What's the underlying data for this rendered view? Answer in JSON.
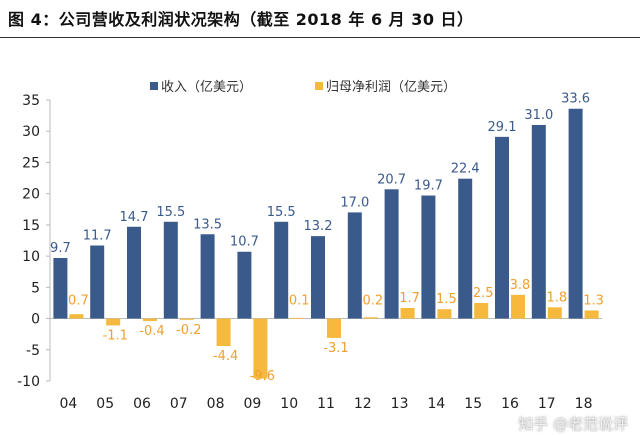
{
  "title": "图 4：公司营收及利润状况架构（截至 2018 年 6 月 30 日）",
  "watermark": "知乎 @老范说评",
  "chart_data": {
    "type": "bar",
    "title": "",
    "xlabel": "",
    "ylabel": "",
    "ylim": [
      -10,
      35
    ],
    "yticks": [
      -10,
      -5,
      0,
      5,
      10,
      15,
      20,
      25,
      30,
      35
    ],
    "grid": false,
    "legend_placement": "top-center",
    "categories": [
      "04",
      "05",
      "06",
      "07",
      "08",
      "09",
      "10",
      "11",
      "12",
      "13",
      "14",
      "15",
      "16",
      "17",
      "18"
    ],
    "series": [
      {
        "name": "收入（亿美元）",
        "color": "#3b5a8c",
        "label_color": "#3b5a8c",
        "values": [
          9.7,
          11.7,
          14.7,
          15.5,
          13.5,
          10.7,
          15.5,
          13.2,
          17.0,
          20.7,
          19.7,
          22.4,
          29.1,
          31.0,
          33.6
        ]
      },
      {
        "name": "归母净利润（亿美元）",
        "color": "#f5b93d",
        "label_color": "#f0a030",
        "values": [
          0.7,
          -1.1,
          -0.4,
          -0.2,
          -4.4,
          -9.6,
          0.1,
          -3.1,
          0.2,
          1.7,
          1.5,
          2.5,
          3.8,
          1.8,
          1.3
        ]
      }
    ]
  }
}
